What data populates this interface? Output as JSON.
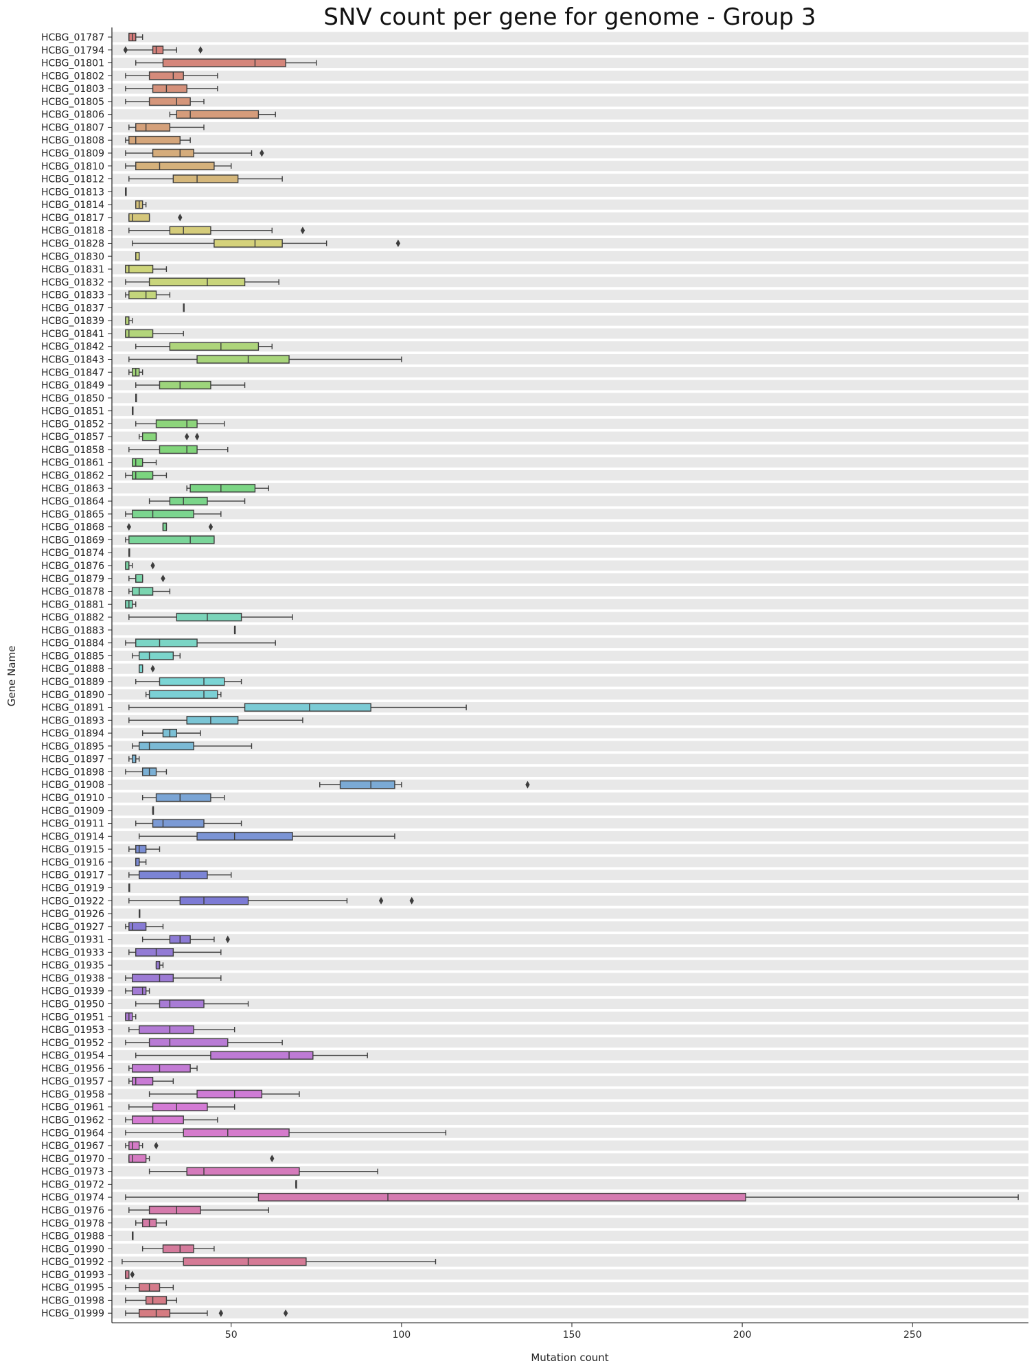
{
  "chart_data": {
    "type": "box",
    "orientation": "horizontal",
    "title": "SNV count per gene for genome - Group 3",
    "xlabel": "Mutation count",
    "ylabel": "Gene Name",
    "xlim": [
      15,
      284
    ],
    "xticks": [
      50,
      100,
      150,
      200,
      250
    ],
    "row_band_color": "#e8e8e8",
    "genes": [
      {
        "name": "HCBG_01787",
        "wlo": 20,
        "q1": 20,
        "med": 21,
        "q3": 22,
        "whi": 24,
        "outliers": []
      },
      {
        "name": "HCBG_01794",
        "wlo": 19,
        "q1": 27,
        "med": 28,
        "q3": 30,
        "whi": 34,
        "outliers": [
          19,
          41
        ]
      },
      {
        "name": "HCBG_01801",
        "wlo": 22,
        "q1": 30,
        "med": 57,
        "q3": 66,
        "whi": 75,
        "outliers": []
      },
      {
        "name": "HCBG_01802",
        "wlo": 19,
        "q1": 26,
        "med": 33,
        "q3": 36,
        "whi": 46,
        "outliers": []
      },
      {
        "name": "HCBG_01803",
        "wlo": 19,
        "q1": 27,
        "med": 31,
        "q3": 37,
        "whi": 46,
        "outliers": []
      },
      {
        "name": "HCBG_01805",
        "wlo": 19,
        "q1": 26,
        "med": 34,
        "q3": 38,
        "whi": 42,
        "outliers": []
      },
      {
        "name": "HCBG_01806",
        "wlo": 32,
        "q1": 34,
        "med": 38,
        "q3": 58,
        "whi": 63,
        "outliers": []
      },
      {
        "name": "HCBG_01807",
        "wlo": 20,
        "q1": 22,
        "med": 25,
        "q3": 32,
        "whi": 42,
        "outliers": []
      },
      {
        "name": "HCBG_01808",
        "wlo": 19,
        "q1": 20,
        "med": 22,
        "q3": 35,
        "whi": 38,
        "outliers": []
      },
      {
        "name": "HCBG_01809",
        "wlo": 19,
        "q1": 27,
        "med": 35,
        "q3": 39,
        "whi": 56,
        "outliers": [
          59
        ]
      },
      {
        "name": "HCBG_01810",
        "wlo": 19,
        "q1": 22,
        "med": 29,
        "q3": 45,
        "whi": 50,
        "outliers": []
      },
      {
        "name": "HCBG_01812",
        "wlo": 20,
        "q1": 33,
        "med": 40,
        "q3": 52,
        "whi": 65,
        "outliers": []
      },
      {
        "name": "HCBG_01813",
        "wlo": 19,
        "q1": 19,
        "med": 19,
        "q3": 19,
        "whi": 19,
        "outliers": []
      },
      {
        "name": "HCBG_01814",
        "wlo": 22,
        "q1": 22,
        "med": 23,
        "q3": 24,
        "whi": 25,
        "outliers": []
      },
      {
        "name": "HCBG_01817",
        "wlo": 20,
        "q1": 20,
        "med": 21,
        "q3": 26,
        "whi": 26,
        "outliers": [
          35
        ]
      },
      {
        "name": "HCBG_01818",
        "wlo": 20,
        "q1": 32,
        "med": 36,
        "q3": 44,
        "whi": 62,
        "outliers": [
          71
        ]
      },
      {
        "name": "HCBG_01828",
        "wlo": 21,
        "q1": 45,
        "med": 57,
        "q3": 65,
        "whi": 78,
        "outliers": [
          99
        ]
      },
      {
        "name": "HCBG_01830",
        "wlo": 22,
        "q1": 22,
        "med": 22,
        "q3": 23,
        "whi": 23,
        "outliers": []
      },
      {
        "name": "HCBG_01831",
        "wlo": 19,
        "q1": 19,
        "med": 20,
        "q3": 27,
        "whi": 31,
        "outliers": []
      },
      {
        "name": "HCBG_01832",
        "wlo": 19,
        "q1": 26,
        "med": 43,
        "q3": 54,
        "whi": 64,
        "outliers": []
      },
      {
        "name": "HCBG_01833",
        "wlo": 19,
        "q1": 20,
        "med": 25,
        "q3": 28,
        "whi": 32,
        "outliers": []
      },
      {
        "name": "HCBG_01837",
        "wlo": 36,
        "q1": 36,
        "med": 36,
        "q3": 36,
        "whi": 36,
        "outliers": []
      },
      {
        "name": "HCBG_01839",
        "wlo": 19,
        "q1": 19,
        "med": 20,
        "q3": 20,
        "whi": 21,
        "outliers": []
      },
      {
        "name": "HCBG_01841",
        "wlo": 19,
        "q1": 19,
        "med": 20,
        "q3": 27,
        "whi": 36,
        "outliers": []
      },
      {
        "name": "HCBG_01842",
        "wlo": 22,
        "q1": 32,
        "med": 47,
        "q3": 58,
        "whi": 62,
        "outliers": []
      },
      {
        "name": "HCBG_01843",
        "wlo": 20,
        "q1": 40,
        "med": 55,
        "q3": 67,
        "whi": 100,
        "outliers": []
      },
      {
        "name": "HCBG_01847",
        "wlo": 20,
        "q1": 21,
        "med": 22,
        "q3": 23,
        "whi": 24,
        "outliers": []
      },
      {
        "name": "HCBG_01849",
        "wlo": 22,
        "q1": 29,
        "med": 35,
        "q3": 44,
        "whi": 54,
        "outliers": []
      },
      {
        "name": "HCBG_01850",
        "wlo": 22,
        "q1": 22,
        "med": 22,
        "q3": 22,
        "whi": 22,
        "outliers": []
      },
      {
        "name": "HCBG_01851",
        "wlo": 21,
        "q1": 21,
        "med": 21,
        "q3": 21,
        "whi": 21,
        "outliers": []
      },
      {
        "name": "HCBG_01852",
        "wlo": 22,
        "q1": 28,
        "med": 37,
        "q3": 40,
        "whi": 48,
        "outliers": []
      },
      {
        "name": "HCBG_01857",
        "wlo": 23,
        "q1": 24,
        "med": 28,
        "q3": 28,
        "whi": 28,
        "outliers": [
          37,
          40
        ]
      },
      {
        "name": "HCBG_01858",
        "wlo": 20,
        "q1": 29,
        "med": 37,
        "q3": 40,
        "whi": 49,
        "outliers": []
      },
      {
        "name": "HCBG_01861",
        "wlo": 21,
        "q1": 21,
        "med": 22,
        "q3": 24,
        "whi": 28,
        "outliers": []
      },
      {
        "name": "HCBG_01862",
        "wlo": 19,
        "q1": 21,
        "med": 22,
        "q3": 27,
        "whi": 31,
        "outliers": []
      },
      {
        "name": "HCBG_01863",
        "wlo": 37,
        "q1": 38,
        "med": 47,
        "q3": 57,
        "whi": 61,
        "outliers": []
      },
      {
        "name": "HCBG_01864",
        "wlo": 26,
        "q1": 32,
        "med": 36,
        "q3": 43,
        "whi": 54,
        "outliers": []
      },
      {
        "name": "HCBG_01865",
        "wlo": 19,
        "q1": 21,
        "med": 27,
        "q3": 39,
        "whi": 47,
        "outliers": []
      },
      {
        "name": "HCBG_01868",
        "wlo": 30,
        "q1": 30,
        "med": 30,
        "q3": 31,
        "whi": 31,
        "outliers": [
          20,
          44
        ]
      },
      {
        "name": "HCBG_01869",
        "wlo": 19,
        "q1": 20,
        "med": 38,
        "q3": 45,
        "whi": 45,
        "outliers": []
      },
      {
        "name": "HCBG_01874",
        "wlo": 20,
        "q1": 20,
        "med": 20,
        "q3": 20,
        "whi": 20,
        "outliers": []
      },
      {
        "name": "HCBG_01876",
        "wlo": 19,
        "q1": 19,
        "med": 20,
        "q3": 20,
        "whi": 21,
        "outliers": [
          27
        ]
      },
      {
        "name": "HCBG_01879",
        "wlo": 20,
        "q1": 22,
        "med": 22,
        "q3": 24,
        "whi": 24,
        "outliers": [
          30
        ]
      },
      {
        "name": "HCBG_01878",
        "wlo": 20,
        "q1": 21,
        "med": 23,
        "q3": 27,
        "whi": 32,
        "outliers": []
      },
      {
        "name": "HCBG_01881",
        "wlo": 19,
        "q1": 19,
        "med": 20,
        "q3": 21,
        "whi": 22,
        "outliers": []
      },
      {
        "name": "HCBG_01882",
        "wlo": 20,
        "q1": 34,
        "med": 43,
        "q3": 53,
        "whi": 68,
        "outliers": []
      },
      {
        "name": "HCBG_01883",
        "wlo": 51,
        "q1": 51,
        "med": 51,
        "q3": 51,
        "whi": 51,
        "outliers": []
      },
      {
        "name": "HCBG_01884",
        "wlo": 19,
        "q1": 22,
        "med": 29,
        "q3": 40,
        "whi": 63,
        "outliers": []
      },
      {
        "name": "HCBG_01885",
        "wlo": 21,
        "q1": 23,
        "med": 26,
        "q3": 33,
        "whi": 35,
        "outliers": []
      },
      {
        "name": "HCBG_01888",
        "wlo": 23,
        "q1": 23,
        "med": 23,
        "q3": 24,
        "whi": 24,
        "outliers": [
          27
        ]
      },
      {
        "name": "HCBG_01889",
        "wlo": 22,
        "q1": 29,
        "med": 42,
        "q3": 48,
        "whi": 53,
        "outliers": []
      },
      {
        "name": "HCBG_01890",
        "wlo": 25,
        "q1": 26,
        "med": 42,
        "q3": 46,
        "whi": 47,
        "outliers": []
      },
      {
        "name": "HCBG_01891",
        "wlo": 20,
        "q1": 54,
        "med": 73,
        "q3": 91,
        "whi": 119,
        "outliers": []
      },
      {
        "name": "HCBG_01893",
        "wlo": 20,
        "q1": 37,
        "med": 44,
        "q3": 52,
        "whi": 71,
        "outliers": []
      },
      {
        "name": "HCBG_01894",
        "wlo": 24,
        "q1": 30,
        "med": 32,
        "q3": 34,
        "whi": 41,
        "outliers": []
      },
      {
        "name": "HCBG_01895",
        "wlo": 21,
        "q1": 23,
        "med": 26,
        "q3": 39,
        "whi": 56,
        "outliers": []
      },
      {
        "name": "HCBG_01897",
        "wlo": 20,
        "q1": 21,
        "med": 22,
        "q3": 22,
        "whi": 23,
        "outliers": []
      },
      {
        "name": "HCBG_01898",
        "wlo": 19,
        "q1": 24,
        "med": 26,
        "q3": 28,
        "whi": 31,
        "outliers": []
      },
      {
        "name": "HCBG_01908",
        "wlo": 76,
        "q1": 82,
        "med": 91,
        "q3": 98,
        "whi": 100,
        "outliers": [
          137
        ]
      },
      {
        "name": "HCBG_01910",
        "wlo": 24,
        "q1": 28,
        "med": 35,
        "q3": 44,
        "whi": 48,
        "outliers": []
      },
      {
        "name": "HCBG_01909",
        "wlo": 27,
        "q1": 27,
        "med": 27,
        "q3": 27,
        "whi": 27,
        "outliers": []
      },
      {
        "name": "HCBG_01911",
        "wlo": 22,
        "q1": 27,
        "med": 30,
        "q3": 42,
        "whi": 53,
        "outliers": []
      },
      {
        "name": "HCBG_01914",
        "wlo": 23,
        "q1": 40,
        "med": 51,
        "q3": 68,
        "whi": 98,
        "outliers": []
      },
      {
        "name": "HCBG_01915",
        "wlo": 20,
        "q1": 22,
        "med": 23,
        "q3": 25,
        "whi": 29,
        "outliers": []
      },
      {
        "name": "HCBG_01916",
        "wlo": 22,
        "q1": 22,
        "med": 23,
        "q3": 23,
        "whi": 25,
        "outliers": []
      },
      {
        "name": "HCBG_01917",
        "wlo": 20,
        "q1": 23,
        "med": 35,
        "q3": 43,
        "whi": 50,
        "outliers": []
      },
      {
        "name": "HCBG_01919",
        "wlo": 20,
        "q1": 20,
        "med": 20,
        "q3": 20,
        "whi": 20,
        "outliers": []
      },
      {
        "name": "HCBG_01922",
        "wlo": 20,
        "q1": 35,
        "med": 42,
        "q3": 55,
        "whi": 84,
        "outliers": [
          94,
          103
        ]
      },
      {
        "name": "HCBG_01926",
        "wlo": 23,
        "q1": 23,
        "med": 23,
        "q3": 23,
        "whi": 23,
        "outliers": []
      },
      {
        "name": "HCBG_01927",
        "wlo": 19,
        "q1": 20,
        "med": 21,
        "q3": 25,
        "whi": 30,
        "outliers": []
      },
      {
        "name": "HCBG_01931",
        "wlo": 24,
        "q1": 32,
        "med": 35,
        "q3": 38,
        "whi": 45,
        "outliers": [
          49
        ]
      },
      {
        "name": "HCBG_01933",
        "wlo": 20,
        "q1": 22,
        "med": 28,
        "q3": 33,
        "whi": 47,
        "outliers": []
      },
      {
        "name": "HCBG_01935",
        "wlo": 28,
        "q1": 28,
        "med": 29,
        "q3": 29,
        "whi": 30,
        "outliers": []
      },
      {
        "name": "HCBG_01938",
        "wlo": 19,
        "q1": 21,
        "med": 29,
        "q3": 33,
        "whi": 47,
        "outliers": []
      },
      {
        "name": "HCBG_01939",
        "wlo": 19,
        "q1": 21,
        "med": 24,
        "q3": 25,
        "whi": 26,
        "outliers": []
      },
      {
        "name": "HCBG_01950",
        "wlo": 22,
        "q1": 29,
        "med": 32,
        "q3": 42,
        "whi": 55,
        "outliers": []
      },
      {
        "name": "HCBG_01951",
        "wlo": 19,
        "q1": 19,
        "med": 20,
        "q3": 21,
        "whi": 22,
        "outliers": []
      },
      {
        "name": "HCBG_01953",
        "wlo": 20,
        "q1": 23,
        "med": 32,
        "q3": 39,
        "whi": 51,
        "outliers": []
      },
      {
        "name": "HCBG_01952",
        "wlo": 19,
        "q1": 26,
        "med": 32,
        "q3": 49,
        "whi": 65,
        "outliers": []
      },
      {
        "name": "HCBG_01954",
        "wlo": 22,
        "q1": 44,
        "med": 67,
        "q3": 74,
        "whi": 90,
        "outliers": []
      },
      {
        "name": "HCBG_01956",
        "wlo": 20,
        "q1": 21,
        "med": 29,
        "q3": 38,
        "whi": 40,
        "outliers": []
      },
      {
        "name": "HCBG_01957",
        "wlo": 20,
        "q1": 21,
        "med": 22,
        "q3": 27,
        "whi": 33,
        "outliers": []
      },
      {
        "name": "HCBG_01958",
        "wlo": 26,
        "q1": 40,
        "med": 51,
        "q3": 59,
        "whi": 70,
        "outliers": []
      },
      {
        "name": "HCBG_01961",
        "wlo": 20,
        "q1": 27,
        "med": 34,
        "q3": 43,
        "whi": 51,
        "outliers": []
      },
      {
        "name": "HCBG_01962",
        "wlo": 19,
        "q1": 21,
        "med": 27,
        "q3": 36,
        "whi": 46,
        "outliers": []
      },
      {
        "name": "HCBG_01964",
        "wlo": 19,
        "q1": 36,
        "med": 49,
        "q3": 67,
        "whi": 113,
        "outliers": []
      },
      {
        "name": "HCBG_01967",
        "wlo": 19,
        "q1": 20,
        "med": 21,
        "q3": 23,
        "whi": 24,
        "outliers": [
          28
        ]
      },
      {
        "name": "HCBG_01970",
        "wlo": 20,
        "q1": 20,
        "med": 21,
        "q3": 25,
        "whi": 26,
        "outliers": [
          62
        ]
      },
      {
        "name": "HCBG_01973",
        "wlo": 26,
        "q1": 37,
        "med": 42,
        "q3": 70,
        "whi": 93,
        "outliers": []
      },
      {
        "name": "HCBG_01972",
        "wlo": 69,
        "q1": 69,
        "med": 69,
        "q3": 69,
        "whi": 69,
        "outliers": []
      },
      {
        "name": "HCBG_01974",
        "wlo": 19,
        "q1": 58,
        "med": 96,
        "q3": 201,
        "whi": 281,
        "outliers": []
      },
      {
        "name": "HCBG_01976",
        "wlo": 20,
        "q1": 26,
        "med": 34,
        "q3": 41,
        "whi": 61,
        "outliers": []
      },
      {
        "name": "HCBG_01978",
        "wlo": 22,
        "q1": 24,
        "med": 26,
        "q3": 28,
        "whi": 31,
        "outliers": []
      },
      {
        "name": "HCBG_01988",
        "wlo": 21,
        "q1": 21,
        "med": 21,
        "q3": 21,
        "whi": 21,
        "outliers": []
      },
      {
        "name": "HCBG_01990",
        "wlo": 24,
        "q1": 30,
        "med": 35,
        "q3": 39,
        "whi": 45,
        "outliers": []
      },
      {
        "name": "HCBG_01992",
        "wlo": 18,
        "q1": 36,
        "med": 55,
        "q3": 72,
        "whi": 110,
        "outliers": []
      },
      {
        "name": "HCBG_01993",
        "wlo": 19,
        "q1": 19,
        "med": 19,
        "q3": 20,
        "whi": 20,
        "outliers": [
          21
        ]
      },
      {
        "name": "HCBG_01995",
        "wlo": 19,
        "q1": 23,
        "med": 26,
        "q3": 29,
        "whi": 33,
        "outliers": []
      },
      {
        "name": "HCBG_01998",
        "wlo": 19,
        "q1": 25,
        "med": 27,
        "q3": 31,
        "whi": 34,
        "outliers": []
      },
      {
        "name": "HCBG_01999",
        "wlo": 19,
        "q1": 23,
        "med": 28,
        "q3": 32,
        "whi": 43,
        "outliers": [
          47,
          66
        ]
      }
    ]
  }
}
